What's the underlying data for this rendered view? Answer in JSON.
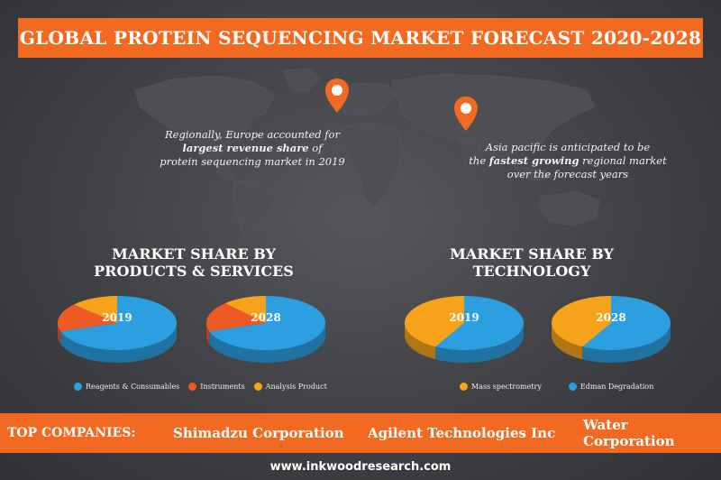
{
  "title": "GLOBAL PROTEIN SEQUENCING MARKET FORECAST 2020-2028",
  "callouts": {
    "europe": {
      "line1": "Regionally, Europe accounted for",
      "emphasis": "largest revenue share",
      "line2_suffix": " of",
      "line3": "protein sequencing market in 2019"
    },
    "asia": {
      "line1": "Asia pacific is anticipated to be",
      "prefix": "the ",
      "emphasis": "fastest growing",
      "suffix": " regional market",
      "line3": "over the forecast years"
    }
  },
  "icons": {
    "map": "world-map-icon",
    "pin": "location-pin-icon"
  },
  "colors": {
    "accent": "#f26a21",
    "blue": "#2b9fe0",
    "orange": "#f7a21b",
    "red_orange": "#ee5a24"
  },
  "sections": {
    "products": {
      "line1": "MARKET SHARE BY",
      "line2": "PRODUCTS & SERVICES"
    },
    "technology": {
      "line1": "MARKET SHARE BY",
      "line2": "TECHNOLOGY"
    }
  },
  "chart_data": [
    {
      "type": "pie",
      "label": "2019",
      "slices": [
        {
          "name": "Reagents & Consumables",
          "value": 70,
          "color": "#2b9fe0"
        },
        {
          "name": "Instruments",
          "value": 17,
          "color": "#ee5a24"
        },
        {
          "name": "Analysis Product",
          "value": 13,
          "color": "#f7a21b"
        }
      ]
    },
    {
      "type": "pie",
      "label": "2028",
      "slices": [
        {
          "name": "Reagents & Consumables",
          "value": 70,
          "color": "#2b9fe0"
        },
        {
          "name": "Instruments",
          "value": 18,
          "color": "#ee5a24"
        },
        {
          "name": "Analysis Product",
          "value": 12,
          "color": "#f7a21b"
        }
      ]
    },
    {
      "type": "pie",
      "label": "2019",
      "slices": [
        {
          "name": "Edman Degradation",
          "value": 58,
          "color": "#2b9fe0"
        },
        {
          "name": "Mass spectrometry",
          "value": 42,
          "color": "#f7a21b"
        }
      ]
    },
    {
      "type": "pie",
      "label": "2028",
      "slices": [
        {
          "name": "Edman Degradation",
          "value": 58,
          "color": "#2b9fe0"
        },
        {
          "name": "Mass spectrometry",
          "value": 42,
          "color": "#f7a21b"
        }
      ]
    }
  ],
  "legends": {
    "products": [
      {
        "label": "Reagents & Consumables",
        "color": "#2b9fe0"
      },
      {
        "label": "Instruments",
        "color": "#ee5a24"
      },
      {
        "label": "Analysis Product",
        "color": "#f7a21b"
      }
    ],
    "technology": [
      {
        "label": "Mass spectrometry",
        "color": "#f7a21b"
      },
      {
        "label": "Edman Degradation",
        "color": "#2b9fe0"
      }
    ]
  },
  "companies": {
    "label": "TOP COMPANIES:",
    "list": [
      "Shimadzu Corporation",
      "Agilent Technologies Inc",
      "Water Corporation"
    ]
  },
  "footer": "www.inkwoodresearch.com"
}
